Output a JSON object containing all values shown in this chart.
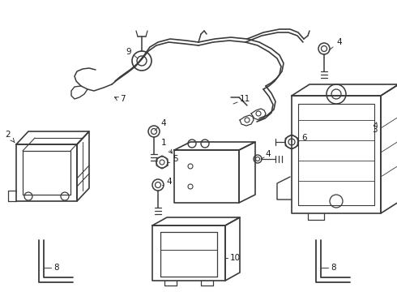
{
  "bg_color": "#ffffff",
  "line_color": "#3a3a3a",
  "text_color": "#1a1a1a",
  "figsize": [
    4.9,
    3.6
  ],
  "dpi": 100
}
